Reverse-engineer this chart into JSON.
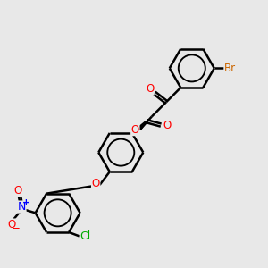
{
  "bg_color": "#e8e8e8",
  "bond_color": "#000000",
  "bond_width": 1.8,
  "dbo": 0.055,
  "atom_colors": {
    "O": "#ff0000",
    "N": "#0000ff",
    "Br": "#cc6600",
    "Cl": "#00aa00"
  },
  "font_size": 8.5,
  "fig_size": [
    3.0,
    3.0
  ],
  "dpi": 100
}
